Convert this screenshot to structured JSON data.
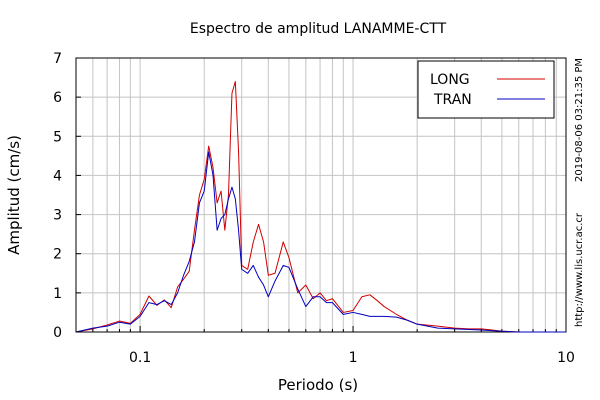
{
  "chart_data": {
    "type": "line",
    "title": "Espectro de amplitud LANAMME-CTT",
    "xlabel": "Periodo (s)",
    "ylabel": "Amplitud (cm/s)",
    "x_scale": "log",
    "xlim": [
      0.05,
      10
    ],
    "ylim": [
      0,
      7
    ],
    "x_ticks": [
      0.1,
      1,
      10
    ],
    "x_tick_labels": [
      "0.1",
      "1",
      "10"
    ],
    "y_ticks": [
      0,
      1,
      2,
      3,
      4,
      5,
      6,
      7
    ],
    "y_tick_labels": [
      "0",
      "1",
      "2",
      "3",
      "4",
      "5",
      "6",
      "7"
    ],
    "grid": true,
    "legend_position": "top-right",
    "side_notes": [
      "2019-08-06 03:21:35 PM",
      "http://www.lis.ucr.ac.cr"
    ],
    "series": [
      {
        "name": "LONG",
        "color": "#d00000",
        "points": [
          [
            0.05,
            0.0
          ],
          [
            0.06,
            0.08
          ],
          [
            0.07,
            0.18
          ],
          [
            0.08,
            0.28
          ],
          [
            0.09,
            0.22
          ],
          [
            0.1,
            0.45
          ],
          [
            0.11,
            0.92
          ],
          [
            0.12,
            0.68
          ],
          [
            0.13,
            0.82
          ],
          [
            0.14,
            0.62
          ],
          [
            0.15,
            1.15
          ],
          [
            0.16,
            1.35
          ],
          [
            0.17,
            1.55
          ],
          [
            0.18,
            2.6
          ],
          [
            0.19,
            3.5
          ],
          [
            0.2,
            3.9
          ],
          [
            0.21,
            4.75
          ],
          [
            0.22,
            4.2
          ],
          [
            0.23,
            3.3
          ],
          [
            0.24,
            3.6
          ],
          [
            0.25,
            2.6
          ],
          [
            0.26,
            3.5
          ],
          [
            0.27,
            6.1
          ],
          [
            0.28,
            6.4
          ],
          [
            0.29,
            4.6
          ],
          [
            0.3,
            1.7
          ],
          [
            0.32,
            1.6
          ],
          [
            0.34,
            2.3
          ],
          [
            0.36,
            2.75
          ],
          [
            0.38,
            2.3
          ],
          [
            0.4,
            1.45
          ],
          [
            0.43,
            1.5
          ],
          [
            0.47,
            2.3
          ],
          [
            0.5,
            1.9
          ],
          [
            0.55,
            1.0
          ],
          [
            0.6,
            1.2
          ],
          [
            0.65,
            0.85
          ],
          [
            0.7,
            1.0
          ],
          [
            0.75,
            0.8
          ],
          [
            0.8,
            0.85
          ],
          [
            0.9,
            0.5
          ],
          [
            1.0,
            0.55
          ],
          [
            1.1,
            0.9
          ],
          [
            1.2,
            0.95
          ],
          [
            1.3,
            0.8
          ],
          [
            1.4,
            0.65
          ],
          [
            1.6,
            0.45
          ],
          [
            1.8,
            0.3
          ],
          [
            2.0,
            0.2
          ],
          [
            2.5,
            0.15
          ],
          [
            3.0,
            0.1
          ],
          [
            3.5,
            0.08
          ],
          [
            4.0,
            0.08
          ],
          [
            4.5,
            0.05
          ],
          [
            5.0,
            0.02
          ],
          [
            6.0,
            0.0
          ],
          [
            8.0,
            0.0
          ],
          [
            10.0,
            0.0
          ]
        ]
      },
      {
        "name": "TRAN",
        "color": "#0000c0",
        "points": [
          [
            0.05,
            0.0
          ],
          [
            0.06,
            0.1
          ],
          [
            0.07,
            0.15
          ],
          [
            0.08,
            0.25
          ],
          [
            0.09,
            0.2
          ],
          [
            0.1,
            0.4
          ],
          [
            0.11,
            0.75
          ],
          [
            0.12,
            0.7
          ],
          [
            0.13,
            0.8
          ],
          [
            0.14,
            0.7
          ],
          [
            0.15,
            1.0
          ],
          [
            0.16,
            1.45
          ],
          [
            0.17,
            1.8
          ],
          [
            0.18,
            2.3
          ],
          [
            0.19,
            3.3
          ],
          [
            0.2,
            3.6
          ],
          [
            0.21,
            4.6
          ],
          [
            0.22,
            4.0
          ],
          [
            0.23,
            2.6
          ],
          [
            0.24,
            2.9
          ],
          [
            0.25,
            3.0
          ],
          [
            0.26,
            3.4
          ],
          [
            0.27,
            3.7
          ],
          [
            0.28,
            3.4
          ],
          [
            0.29,
            2.6
          ],
          [
            0.3,
            1.6
          ],
          [
            0.32,
            1.5
          ],
          [
            0.34,
            1.7
          ],
          [
            0.36,
            1.4
          ],
          [
            0.38,
            1.2
          ],
          [
            0.4,
            0.9
          ],
          [
            0.43,
            1.3
          ],
          [
            0.47,
            1.7
          ],
          [
            0.5,
            1.65
          ],
          [
            0.55,
            1.1
          ],
          [
            0.6,
            0.65
          ],
          [
            0.65,
            0.9
          ],
          [
            0.7,
            0.9
          ],
          [
            0.75,
            0.75
          ],
          [
            0.8,
            0.75
          ],
          [
            0.9,
            0.45
          ],
          [
            1.0,
            0.5
          ],
          [
            1.1,
            0.45
          ],
          [
            1.2,
            0.4
          ],
          [
            1.4,
            0.4
          ],
          [
            1.6,
            0.38
          ],
          [
            1.8,
            0.3
          ],
          [
            2.0,
            0.2
          ],
          [
            2.5,
            0.1
          ],
          [
            3.0,
            0.08
          ],
          [
            4.0,
            0.05
          ],
          [
            5.0,
            0.02
          ],
          [
            6.0,
            0.0
          ],
          [
            8.0,
            0.0
          ],
          [
            10.0,
            0.0
          ]
        ]
      }
    ]
  }
}
